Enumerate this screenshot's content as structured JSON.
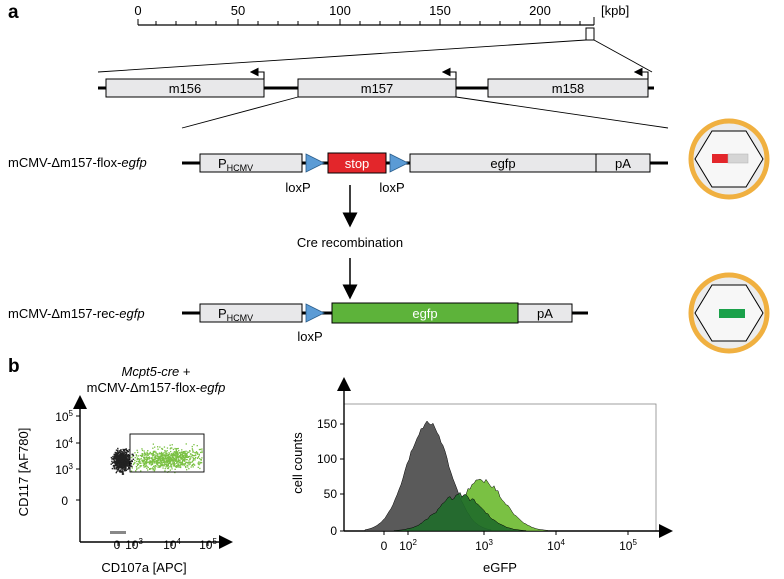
{
  "panels": {
    "a": "a",
    "b": "b"
  },
  "ruler": {
    "unit": "[kpb]",
    "ticks": [
      "0",
      "50",
      "100",
      "150",
      "200"
    ]
  },
  "genes": {
    "m156": "m156",
    "m157": "m157",
    "m158": "m158"
  },
  "construct_flox": {
    "name_prefix": "mCMV-Δm157-flox-",
    "name_italic": "egfp",
    "promoter_main": "P",
    "promoter_sub": "HCMV",
    "stop": "stop",
    "egfp": "egfp",
    "pa": "pA",
    "loxp_1": "loxP",
    "loxp_2": "loxP"
  },
  "recombination": {
    "label": "Cre recombination"
  },
  "construct_rec": {
    "name_prefix": "mCMV-Δm157-rec-",
    "name_italic": "egfp",
    "promoter_main": "P",
    "promoter_sub": "HCMV",
    "egfp": "egfp",
    "pa": "pA",
    "loxp": "loxP"
  },
  "colors": {
    "stop": "#e3262b",
    "egfp_active": "#5db33a",
    "loxp": "#5b9bd5",
    "box_fill": "#e8e8ea",
    "virion_ring": "#f0b040",
    "virion_fill": "#ececec",
    "flow_dark": "#222222",
    "flow_green": "#7ac143",
    "hist_gray": "#5a5a5a",
    "hist_light_green": "#7ac143",
    "hist_dark_green": "#1f6b2a"
  },
  "scatter": {
    "title_italic": "Mcpt5-cre",
    "title_plus": " +",
    "subtitle_prefix": "mCMV-Δm157-flox-",
    "subtitle_italic": "egfp",
    "ylabel": "CD117 [AF780]",
    "xlabel": "CD107a [APC]",
    "yticks": {
      "t105": {
        "base": "10",
        "exp": "5"
      },
      "t104": {
        "base": "10",
        "exp": "4"
      },
      "t103": {
        "base": "10",
        "exp": "3"
      },
      "t0": "0"
    },
    "xticks": {
      "t0": "0",
      "t103": {
        "base": "10",
        "exp": "3"
      },
      "t104": {
        "base": "10",
        "exp": "4"
      },
      "t105": {
        "base": "10",
        "exp": "5"
      }
    }
  },
  "histogram": {
    "ylabel": "cell counts",
    "xlabel": "eGFP",
    "yticks": [
      "0",
      "50",
      "100",
      "150"
    ],
    "xticks": {
      "t0": "0",
      "t102": {
        "base": "10",
        "exp": "2"
      },
      "t103": {
        "base": "10",
        "exp": "3"
      },
      "t104": {
        "base": "10",
        "exp": "4"
      },
      "t105": {
        "base": "10",
        "exp": "5"
      }
    }
  }
}
